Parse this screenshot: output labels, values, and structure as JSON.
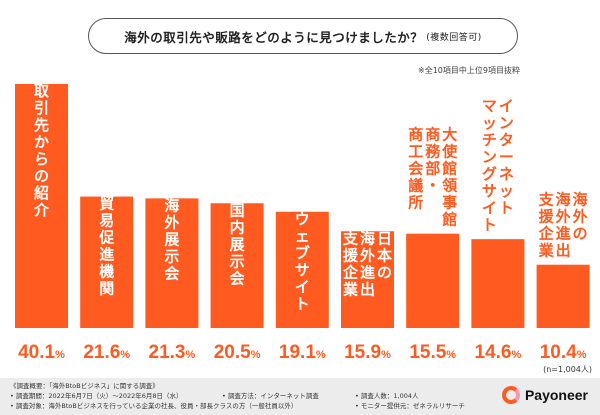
{
  "header": {
    "title": "海外の取引先や販路をどのように見つけましたか？",
    "subtitle": "(複数回答可)",
    "note": "※全10項目中上位9項目抜粋"
  },
  "colors": {
    "bar": "#ff5a1f",
    "label_text": "#ffffff",
    "value_text": "#ff5a1f"
  },
  "chart_data": {
    "type": "bar",
    "categories": [
      "取引先からの紹介",
      "貿易促進機関",
      "海外展示会",
      "国内展示会",
      "ウェブサイト",
      "日本の海外進出支援企業",
      "大使館 領事館 商務部・商工会議所",
      "インターネットマッチングサイト",
      "海外の海外進出支援企業"
    ],
    "label_columns": [
      [
        "取引先からの紹介"
      ],
      [
        "貿易促進機関"
      ],
      [
        "海外展示会"
      ],
      [
        "国内展示会"
      ],
      [
        "ウェブサイト"
      ],
      [
        "日本の",
        "海外進出",
        "支援企業"
      ],
      [
        "大使館領事館",
        "商務部・",
        "商工会議所"
      ],
      [
        "インターネット",
        "マッチングサイト"
      ],
      [
        "海外の",
        "海外進出",
        "支援企業"
      ]
    ],
    "values": [
      40.1,
      21.6,
      21.3,
      20.5,
      19.1,
      15.9,
      15.5,
      14.6,
      10.4
    ],
    "value_labels": [
      "40.1",
      "21.6",
      "21.3",
      "20.5",
      "19.1",
      "15.9",
      "15.5",
      "14.6",
      "10.4"
    ],
    "unit": "%",
    "sample_note": "(n=1,004人)",
    "ylim": [
      0,
      40.1
    ]
  },
  "footer": {
    "line1": "《調査概要：「海外BtoBビジネス」に関する調査》",
    "period": "• 調査期間：2022年6月7日（火）〜2022年6月8日（水）",
    "method": "• 調査方法：インターネット調査",
    "count": "• 調査人数：1,004人",
    "target": "• 調査対象：海外BtoBビジネスを行っている企業の社長、役員・部長クラスの方（一般社員以外）",
    "monitor": "• モニター提供元：ゼネラルリサーチ"
  },
  "brand": {
    "icon": "payoneer-logo-icon",
    "name": "Payoneer"
  }
}
